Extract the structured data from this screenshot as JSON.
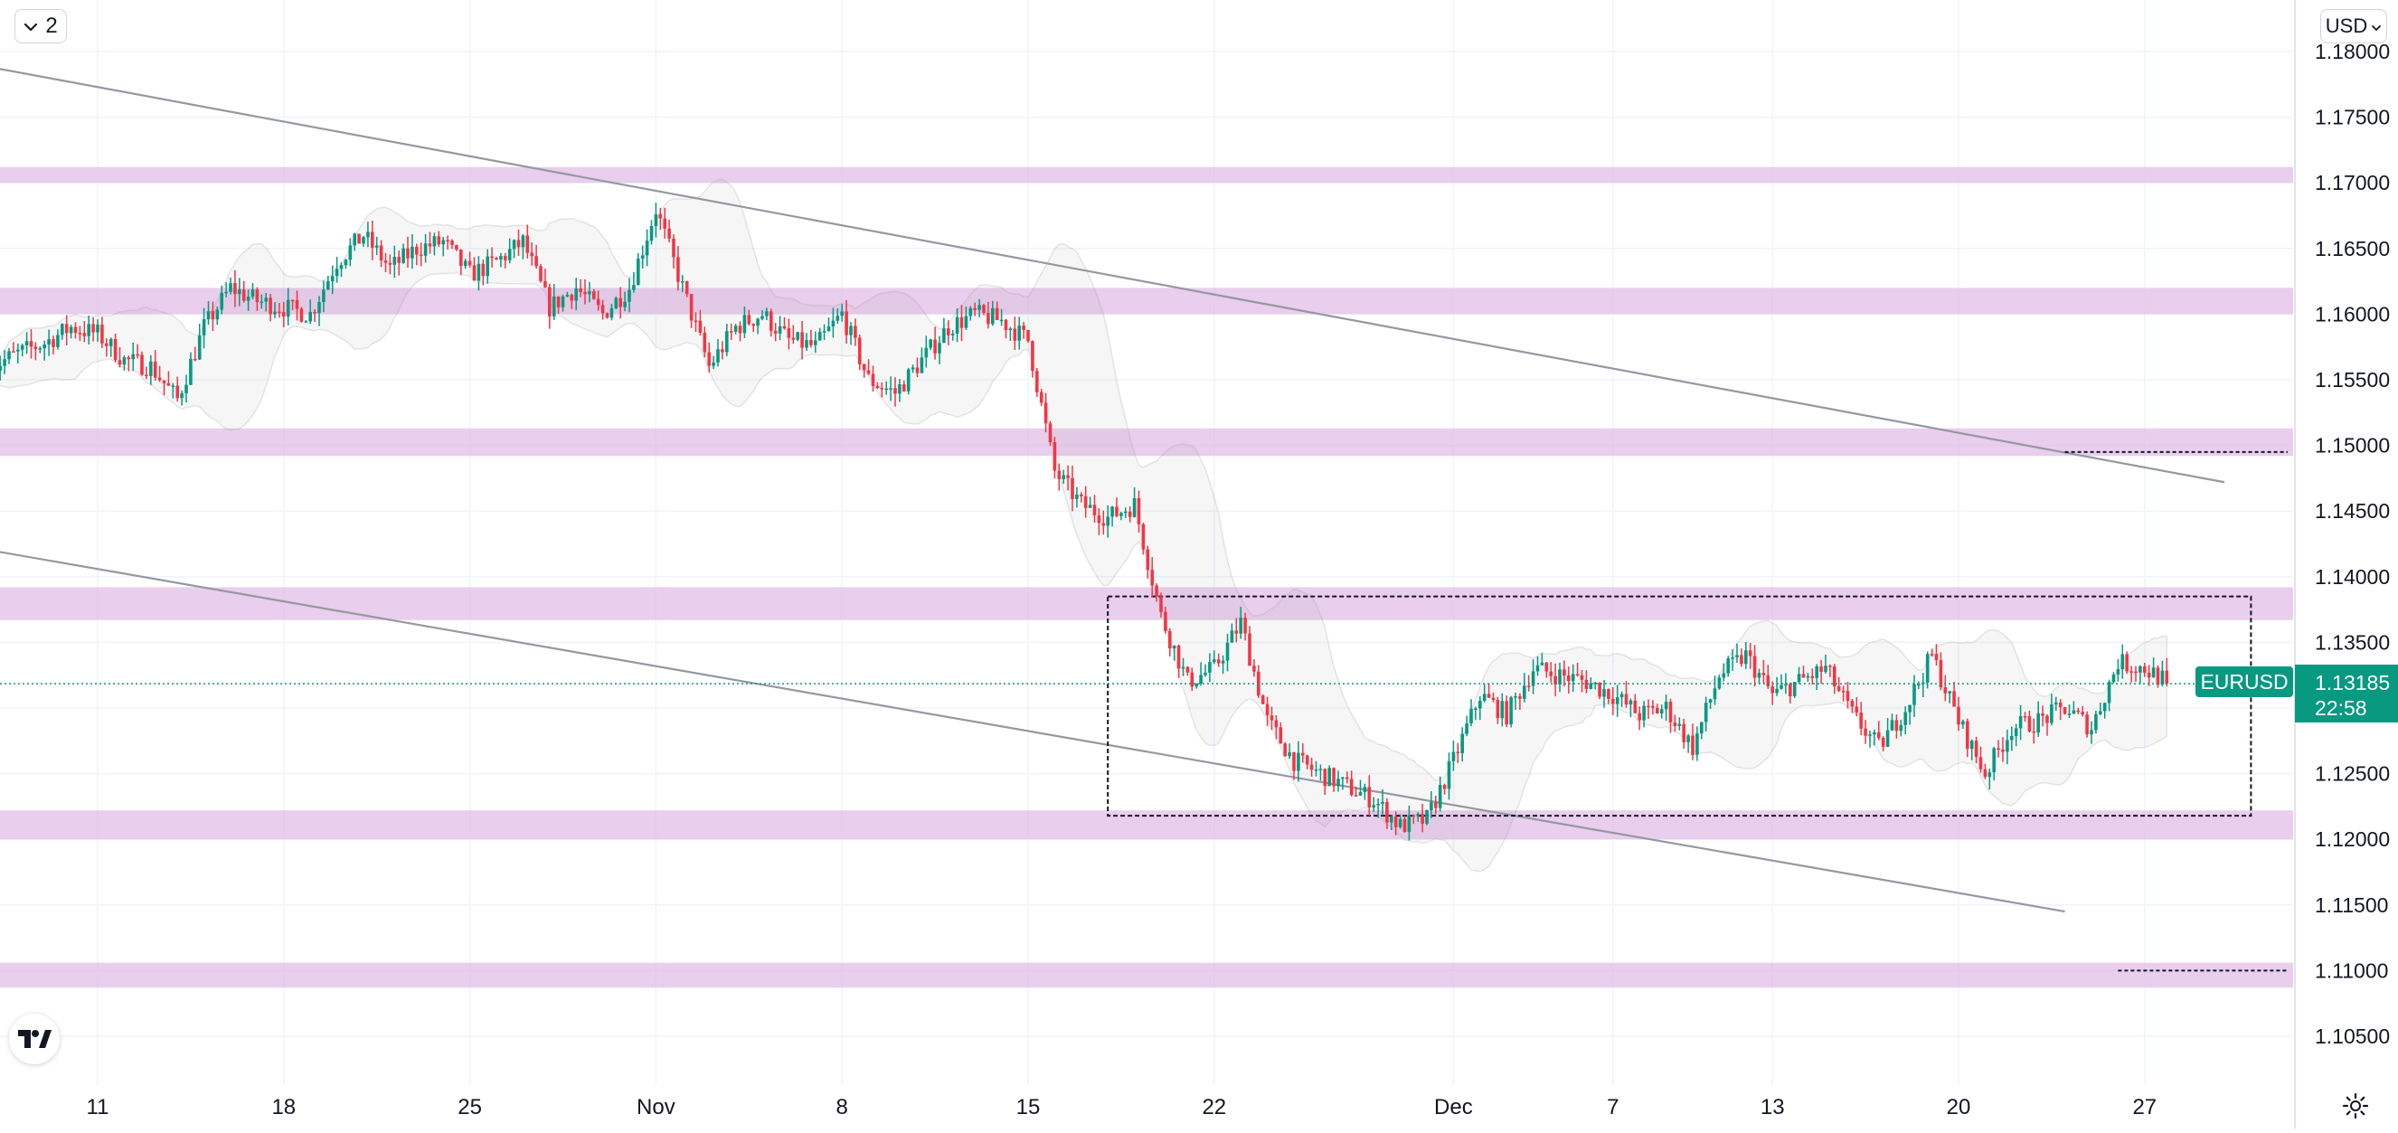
{
  "toolbar": {
    "layout_count": "2",
    "currency": "USD"
  },
  "symbol": {
    "name": "EURUSD",
    "last_price": "1.13185",
    "countdown": "22:58",
    "badge_color": "#089981"
  },
  "colors": {
    "up": "#089981",
    "down": "#f23645",
    "zone": "#e1bee7",
    "trendline": "#9598a1",
    "grid": "#f0f3fa",
    "band": "#9e9e9e"
  },
  "icons": {
    "layout": "chevron-down-icon",
    "currency": "chevron-down-icon",
    "logo": "tradingview-logo-icon",
    "settings": "gear-icon"
  },
  "chart_data": {
    "type": "candlestick",
    "symbol": "EURUSD",
    "timeframe_hint": "4H",
    "y_axis": {
      "range": [
        1.1025,
        1.1808
      ],
      "ticks": [
        "1.18000",
        "1.17500",
        "1.17000",
        "1.16500",
        "1.16000",
        "1.15500",
        "1.15000",
        "1.14500",
        "1.14000",
        "1.13500",
        "1.13000",
        "1.12500",
        "1.12000",
        "1.11500",
        "1.11000",
        "1.10500"
      ]
    },
    "x_axis": {
      "ticks": [
        "11",
        "18",
        "25",
        "Nov",
        "8",
        "15",
        "22",
        "Dec",
        "7",
        "13",
        "20",
        "27"
      ],
      "range": [
        "2021-10-07",
        "2021-12-30"
      ]
    },
    "grid": true,
    "support_resistance_zones": [
      {
        "low": 1.17,
        "high": 1.1712
      },
      {
        "low": 1.16,
        "high": 1.162
      },
      {
        "low": 1.1492,
        "high": 1.1513
      },
      {
        "low": 1.1367,
        "high": 1.1392
      },
      {
        "low": 1.12,
        "high": 1.1222
      },
      {
        "low": 1.1087,
        "high": 1.1106
      }
    ],
    "trendlines": [
      {
        "from": {
          "date": "2021-10-07",
          "price": 1.1788
        },
        "to": {
          "date": "2021-12-30",
          "price": 1.1472
        }
      },
      {
        "from": {
          "date": "2021-10-07",
          "price": 1.142
        },
        "to": {
          "date": "2021-12-24",
          "price": 1.1145
        }
      }
    ],
    "range_box": {
      "from_date": "2021-11-18",
      "to_date": "2021-12-31",
      "low": 1.1218,
      "high": 1.1385
    },
    "price_lines": [
      {
        "from_date": "2021-12-24",
        "price": 1.1495
      },
      {
        "from_date": "2021-12-26",
        "price": 1.11
      }
    ],
    "last_price": 1.13185,
    "candles_source": "approximate price path",
    "price_path": [
      [
        "2021-10-07",
        1.156
      ],
      [
        "2021-10-08",
        1.157
      ],
      [
        "2021-10-09",
        1.1578
      ],
      [
        "2021-10-10",
        1.159
      ],
      [
        "2021-10-11",
        1.1585
      ],
      [
        "2021-10-12",
        1.1565
      ],
      [
        "2021-10-13",
        1.156
      ],
      [
        "2021-10-14",
        1.1535
      ],
      [
        "2021-10-15",
        1.159
      ],
      [
        "2021-10-16",
        1.162
      ],
      [
        "2021-10-17",
        1.161
      ],
      [
        "2021-10-18",
        1.1605
      ],
      [
        "2021-10-19",
        1.16
      ],
      [
        "2021-10-20",
        1.164
      ],
      [
        "2021-10-21",
        1.166
      ],
      [
        "2021-10-22",
        1.1635
      ],
      [
        "2021-10-23",
        1.165
      ],
      [
        "2021-10-24",
        1.1655
      ],
      [
        "2021-10-25",
        1.163
      ],
      [
        "2021-10-26",
        1.164
      ],
      [
        "2021-10-27",
        1.1655
      ],
      [
        "2021-10-28",
        1.1605
      ],
      [
        "2021-10-29",
        1.162
      ],
      [
        "2021-10-30",
        1.16
      ],
      [
        "2021-10-31",
        1.162
      ],
      [
        "2021-11-01",
        1.168
      ],
      [
        "2021-11-02",
        1.162
      ],
      [
        "2021-11-03",
        1.156
      ],
      [
        "2021-11-04",
        1.159
      ],
      [
        "2021-11-05",
        1.16
      ],
      [
        "2021-11-06",
        1.158
      ],
      [
        "2021-11-07",
        1.1575
      ],
      [
        "2021-11-08",
        1.16
      ],
      [
        "2021-11-09",
        1.155
      ],
      [
        "2021-11-10",
        1.154
      ],
      [
        "2021-11-11",
        1.1565
      ],
      [
        "2021-11-12",
        1.159
      ],
      [
        "2021-11-13",
        1.16
      ],
      [
        "2021-11-14",
        1.1595
      ],
      [
        "2021-11-15",
        1.158
      ],
      [
        "2021-11-16",
        1.148
      ],
      [
        "2021-11-17",
        1.1455
      ],
      [
        "2021-11-18",
        1.1445
      ],
      [
        "2021-11-19",
        1.1455
      ],
      [
        "2021-11-20",
        1.137
      ],
      [
        "2021-11-21",
        1.132
      ],
      [
        "2021-11-22",
        1.133
      ],
      [
        "2021-11-23",
        1.1365
      ],
      [
        "2021-11-24",
        1.129
      ],
      [
        "2021-11-25",
        1.126
      ],
      [
        "2021-11-26",
        1.125
      ],
      [
        "2021-11-27",
        1.124
      ],
      [
        "2021-11-28",
        1.123
      ],
      [
        "2021-11-29",
        1.121
      ],
      [
        "2021-11-30",
        1.1215
      ],
      [
        "2021-12-01",
        1.126
      ],
      [
        "2021-12-02",
        1.131
      ],
      [
        "2021-12-03",
        1.1295
      ],
      [
        "2021-12-04",
        1.133
      ],
      [
        "2021-12-05",
        1.1325
      ],
      [
        "2021-12-06",
        1.132
      ],
      [
        "2021-12-07",
        1.131
      ],
      [
        "2021-12-08",
        1.1295
      ],
      [
        "2021-12-09",
        1.13
      ],
      [
        "2021-12-10",
        1.127
      ],
      [
        "2021-12-11",
        1.1325
      ],
      [
        "2021-12-12",
        1.134
      ],
      [
        "2021-12-13",
        1.131
      ],
      [
        "2021-12-14",
        1.132
      ],
      [
        "2021-12-15",
        1.133
      ],
      [
        "2021-12-16",
        1.1295
      ],
      [
        "2021-12-17",
        1.127
      ],
      [
        "2021-12-18",
        1.13
      ],
      [
        "2021-12-19",
        1.134
      ],
      [
        "2021-12-20",
        1.129
      ],
      [
        "2021-12-21",
        1.125
      ],
      [
        "2021-12-22",
        1.1285
      ],
      [
        "2021-12-23",
        1.129
      ],
      [
        "2021-12-24",
        1.13
      ],
      [
        "2021-12-25",
        1.1285
      ],
      [
        "2021-12-26",
        1.1335
      ],
      [
        "2021-12-27",
        1.133
      ],
      [
        "2021-12-28",
        1.1318
      ],
      [
        "2021-12-28",
        1.13185
      ]
    ]
  }
}
